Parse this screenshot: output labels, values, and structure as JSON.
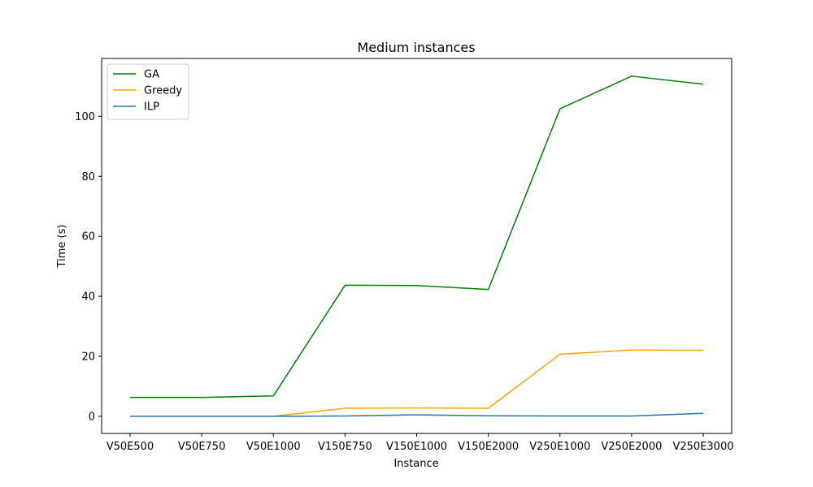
{
  "chart_data": {
    "type": "line",
    "title": "Medium instances",
    "xlabel": "Instance",
    "ylabel": "Time (s)",
    "categories": [
      "V50E500",
      "V50E750",
      "V50E1000",
      "V150E750",
      "V150E1000",
      "V150E2000",
      "V250E1000",
      "V250E2000",
      "V250E3000"
    ],
    "yticks": [
      0,
      20,
      40,
      60,
      80,
      100
    ],
    "ylim": [
      -5.7,
      119.3
    ],
    "grid": false,
    "legend_position": "top-left",
    "series": [
      {
        "name": "GA",
        "color": "#008000",
        "values": [
          6.3,
          6.3,
          6.8,
          43.7,
          43.6,
          42.3,
          102.5,
          113.4,
          110.7
        ]
      },
      {
        "name": "Greedy",
        "color": "#ffa500",
        "values": [
          null,
          null,
          0.0,
          2.7,
          2.8,
          2.7,
          20.7,
          22.1,
          22.0
        ]
      },
      {
        "name": "ILP",
        "color": "#1f77b4",
        "values": [
          0.0,
          0.0,
          0.0,
          0.1,
          0.5,
          0.2,
          0.1,
          0.1,
          1.0
        ]
      }
    ]
  }
}
